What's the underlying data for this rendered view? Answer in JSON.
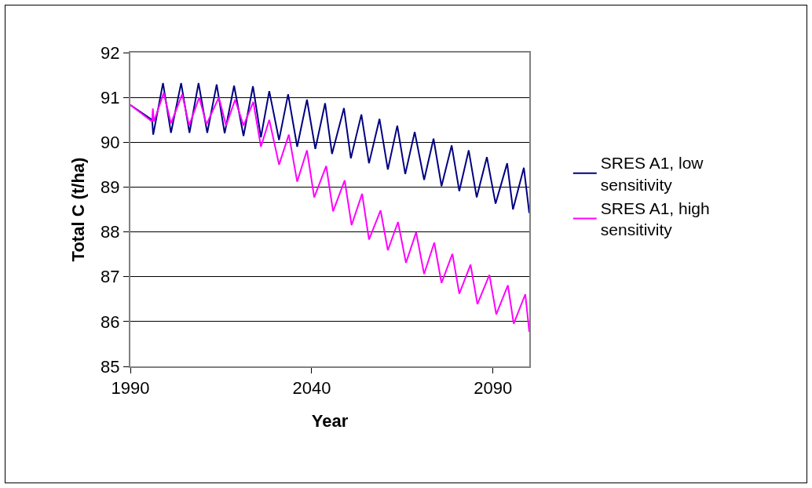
{
  "chart_data": {
    "type": "line",
    "xlabel": "Year",
    "ylabel": "Total C (t/ha)",
    "xlim": [
      1990,
      2100
    ],
    "xticks": [
      1990,
      2040,
      2090
    ],
    "ylim": [
      85,
      92
    ],
    "yticks": [
      85,
      86,
      87,
      88,
      89,
      90,
      91,
      92
    ],
    "grid": "y",
    "legend": "right",
    "marker": "none",
    "line_style": "solid",
    "series": [
      {
        "name": "SRES A1, low sensitivity",
        "color": "#000080",
        "x": [
          1990,
          1996,
          1996.3,
          1999,
          2001.2,
          2004,
          2006.3,
          2008.8,
          2011.2,
          2013.8,
          2016,
          2018.6,
          2021.2,
          2023.8,
          2026,
          2028.3,
          2031,
          2033.5,
          2036,
          2038.7,
          2041,
          2043.7,
          2045.6,
          2048.9,
          2050.8,
          2053.7,
          2055.8,
          2058.7,
          2061,
          2063.6,
          2065.8,
          2068.4,
          2071,
          2073.6,
          2075.8,
          2078.6,
          2080.7,
          2083.3,
          2085.5,
          2088.3,
          2090.7,
          2093.9,
          2095.5,
          2098.5,
          2100
        ],
        "values": [
          90.83,
          90.5,
          90.17,
          91.32,
          90.21,
          91.32,
          90.21,
          91.32,
          90.21,
          91.29,
          90.2,
          91.26,
          90.14,
          91.25,
          90.11,
          91.14,
          90.05,
          91.07,
          89.9,
          90.95,
          89.85,
          90.87,
          89.74,
          90.76,
          89.64,
          90.62,
          89.53,
          90.52,
          89.39,
          90.37,
          89.29,
          90.23,
          89.16,
          90.08,
          89.02,
          89.93,
          88.91,
          89.82,
          88.77,
          89.67,
          88.63,
          89.53,
          88.5,
          89.43,
          88.42
        ]
      },
      {
        "name": "SRES A1, high sensitivity",
        "color": "#ff00ff",
        "x": [
          1990,
          1996,
          1996.2,
          1996.5,
          1999.2,
          2001.2,
          2004.3,
          2006.2,
          2009,
          2011,
          2014.4,
          2016.4,
          2018.9,
          2021.2,
          2023.9,
          2026,
          2028.3,
          2031,
          2033.7,
          2036,
          2038.7,
          2040.7,
          2044,
          2045.9,
          2049.1,
          2051,
          2053.9,
          2055.8,
          2059,
          2061,
          2063.8,
          2066,
          2068.8,
          2071,
          2073.8,
          2075.8,
          2078.8,
          2080.7,
          2083.8,
          2085.7,
          2089,
          2090.9,
          2094.1,
          2095.7,
          2098.9,
          2100
        ],
        "values": [
          90.83,
          90.46,
          90.75,
          90.46,
          91.1,
          90.42,
          91.07,
          90.37,
          91,
          90.4,
          91,
          90.37,
          90.95,
          90.37,
          90.9,
          89.9,
          90.5,
          89.5,
          90.17,
          89.12,
          89.82,
          88.77,
          89.47,
          88.46,
          89.15,
          88.15,
          88.85,
          87.83,
          88.48,
          87.59,
          88.22,
          87.31,
          87.99,
          87.06,
          87.76,
          86.86,
          87.51,
          86.62,
          87.27,
          86.39,
          87.04,
          86.16,
          86.81,
          85.95,
          86.61,
          85.77
        ]
      }
    ]
  }
}
